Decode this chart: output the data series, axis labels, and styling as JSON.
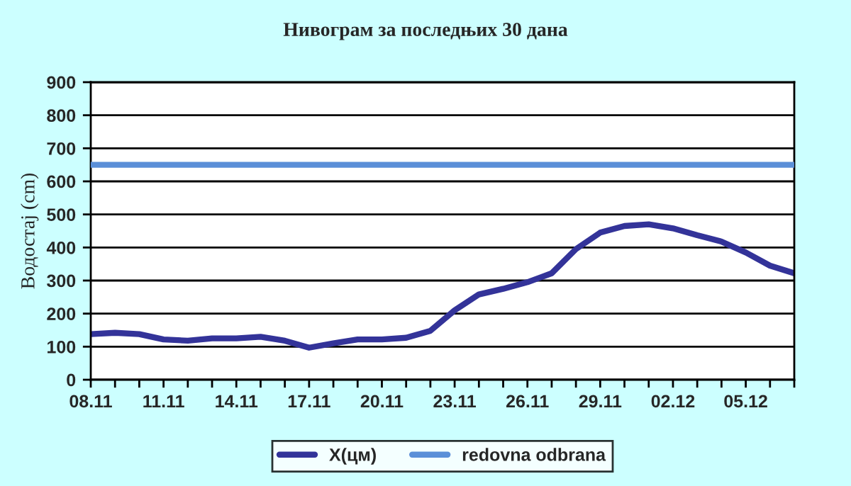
{
  "chart_data": {
    "type": "line",
    "title": "Нивограм за последњих 30 дана",
    "ylabel": "Водостај (cm)",
    "categories": [
      "08.11",
      null,
      null,
      "11.11",
      null,
      null,
      "14.11",
      null,
      null,
      "17.11",
      null,
      null,
      "20.11",
      null,
      null,
      "23.11",
      null,
      null,
      "26.11",
      null,
      null,
      "29.11",
      null,
      null,
      "02.12",
      null,
      null,
      "05.12",
      null,
      null
    ],
    "series": [
      {
        "name": "X(цм)",
        "color": "#333399",
        "values": [
          138,
          142,
          138,
          122,
          118,
          125,
          125,
          130,
          118,
          97,
          110,
          122,
          122,
          127,
          148,
          210,
          258,
          275,
          295,
          322,
          395,
          445,
          465,
          470,
          458,
          437,
          418,
          385,
          345,
          322
        ]
      }
    ],
    "ref_lines": [
      {
        "axis": "y",
        "value": 650,
        "label": "redovna odbrana",
        "color": "#5b8fd8"
      }
    ],
    "ylim": [
      0,
      900
    ],
    "yticks": [
      0,
      100,
      200,
      300,
      400,
      500,
      600,
      700,
      800,
      900
    ],
    "grid": "y",
    "legend": "bottom",
    "marker": "none",
    "line_style": "solid"
  }
}
